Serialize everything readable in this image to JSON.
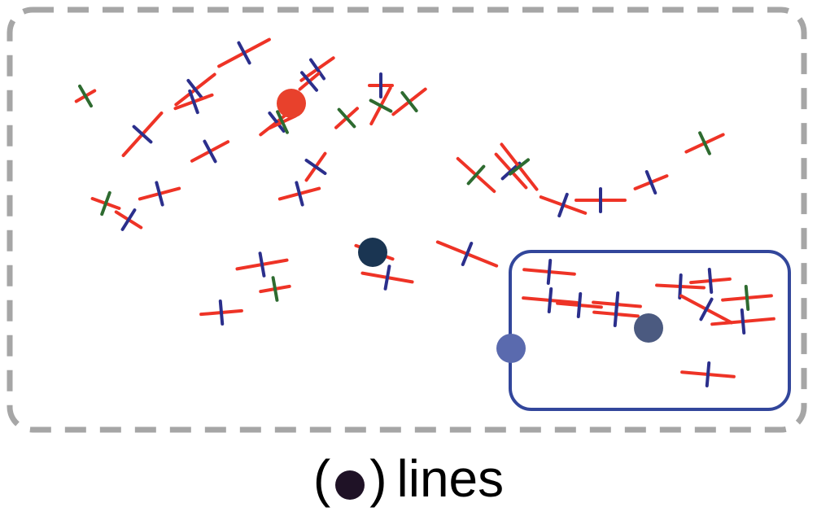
{
  "caption": {
    "open_paren": "(",
    "close_paren": ")",
    "label": "lines"
  },
  "colors": {
    "frame_outer": "#a6a6a6",
    "frame_inner": "#32469b",
    "segment": "#ee3326",
    "cross_blue": "#2b2f8c",
    "cross_green": "#2e6b30",
    "node_red": "#e8412c",
    "node_navy": "#1a3552",
    "node_slate": "#4b5a80",
    "node_periwinkle": "#5a6aae",
    "caption_marker": "#1f1226"
  },
  "icons": {
    "caption_marker": "filled-circle-icon"
  }
}
